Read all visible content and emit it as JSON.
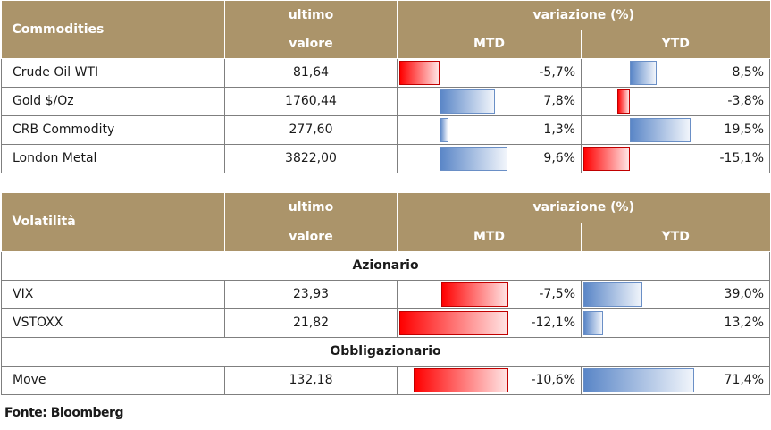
{
  "commodities": {
    "header": {
      "name": "Commodities",
      "ultimo_line1": "ultimo",
      "ultimo_line2": "valore",
      "variazione": "variazione (%)",
      "mtd": "MTD",
      "ytd": "YTD"
    },
    "rows": [
      {
        "label": "Crude Oil WTI",
        "value": "81,64",
        "mtd": "-5,7%",
        "mtd_num": -5.7,
        "ytd": "8,5%",
        "ytd_num": 8.5
      },
      {
        "label": "Gold $/Oz",
        "value": "1760,44",
        "mtd": "7,8%",
        "mtd_num": 7.8,
        "ytd": "-3,8%",
        "ytd_num": -3.8
      },
      {
        "label": "CRB Commodity",
        "value": "277,60",
        "mtd": "1,3%",
        "mtd_num": 1.3,
        "ytd": "19,5%",
        "ytd_num": 19.5
      },
      {
        "label": "London Metal",
        "value": "3822,00",
        "mtd": "9,6%",
        "mtd_num": 9.6,
        "ytd": "-15,1%",
        "ytd_num": -15.1
      }
    ]
  },
  "volatilita": {
    "header": {
      "name": "Volatilità",
      "ultimo_line1": "ultimo",
      "ultimo_line2": "valore",
      "variazione": "variazione (%)",
      "mtd": "MTD",
      "ytd": "YTD"
    },
    "sections": [
      {
        "title": "Azionario"
      },
      {
        "title": "Obbligazionario"
      }
    ],
    "rows": [
      {
        "label": "VIX",
        "value": "23,93",
        "mtd": "-7,5%",
        "mtd_num": -7.5,
        "ytd": "39,0%",
        "ytd_num": 39.0
      },
      {
        "label": "VSTOXX",
        "value": "21,82",
        "mtd": "-12,1%",
        "mtd_num": -12.1,
        "ytd": "13,2%",
        "ytd_num": 13.2
      },
      {
        "label": "Move",
        "value": "132,18",
        "mtd": "-10,6%",
        "mtd_num": -10.6,
        "ytd": "71,4%",
        "ytd_num": 71.4
      }
    ]
  },
  "footer": "Fonte: Bloomberg"
}
